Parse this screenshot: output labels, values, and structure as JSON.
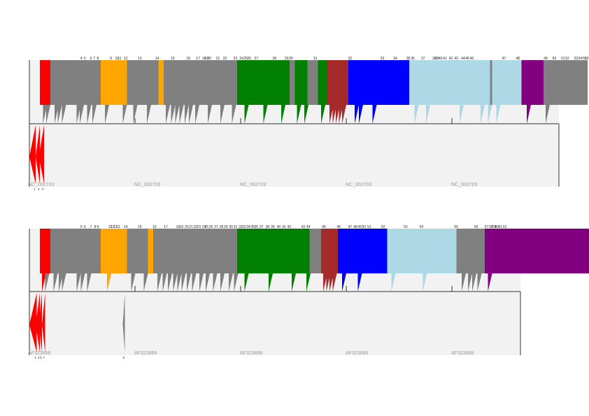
{
  "colors": {
    "red": "#ff0000",
    "gray": "#808080",
    "orange": "#ffa500",
    "green": "#008000",
    "brown": "#a52a2a",
    "blue": "#0000ff",
    "lightblue": "#add8e6",
    "purple": "#800080",
    "background": "#f2f2f2",
    "frame": "#333333"
  },
  "tracks": [
    {
      "id": "NC_002703",
      "repeat_labels": [
        "NC_002703",
        "NC_002703",
        "NC_002703",
        "NC_002703",
        "NC_002703"
      ],
      "blocks": [
        {
          "c": "red",
          "s": 0.1,
          "e": 0.2
        },
        {
          "c": "gray",
          "s": 0.2,
          "e": 0.68
        },
        {
          "c": "orange",
          "s": 0.68,
          "e": 0.93
        },
        {
          "c": "gray",
          "s": 0.93,
          "e": 1.23
        },
        {
          "c": "orange",
          "s": 1.23,
          "e": 1.28
        },
        {
          "c": "gray",
          "s": 1.28,
          "e": 1.98
        },
        {
          "c": "green",
          "s": 1.98,
          "e": 2.48
        },
        {
          "c": "gray",
          "s": 2.48,
          "e": 2.53
        },
        {
          "c": "green",
          "s": 2.53,
          "e": 2.65
        },
        {
          "c": "gray",
          "s": 2.65,
          "e": 2.75
        },
        {
          "c": "green",
          "s": 2.75,
          "e": 2.84
        },
        {
          "c": "brown",
          "s": 2.84,
          "e": 3.04
        },
        {
          "c": "blue",
          "s": 3.04,
          "e": 3.62
        },
        {
          "c": "lightblue",
          "s": 3.62,
          "e": 4.39
        },
        {
          "c": "gray",
          "s": 4.39,
          "e": 4.41
        },
        {
          "c": "lightblue",
          "s": 4.41,
          "e": 4.69
        },
        {
          "c": "purple",
          "s": 4.69,
          "e": 4.9
        },
        {
          "c": "gray",
          "s": 4.9,
          "e": 5.32
        }
      ],
      "arrows": [
        {
          "c": "gray",
          "x": 0.13
        },
        {
          "c": "gray",
          "x": 0.16
        },
        {
          "c": "gray",
          "x": 0.24
        },
        {
          "c": "gray",
          "x": 0.27
        },
        {
          "c": "gray",
          "x": 0.31
        },
        {
          "c": "gray",
          "x": 0.45
        },
        {
          "c": "gray",
          "x": 0.48
        },
        {
          "c": "gray",
          "x": 0.55
        },
        {
          "c": "gray",
          "x": 0.6
        },
        {
          "c": "gray",
          "x": 0.72
        },
        {
          "c": "gray",
          "x": 0.89
        },
        {
          "c": "gray",
          "x": 0.99
        },
        {
          "c": "gray",
          "x": 1.12
        },
        {
          "c": "gray",
          "x": 1.3
        },
        {
          "c": "gray",
          "x": 1.35
        },
        {
          "c": "gray",
          "x": 1.39
        },
        {
          "c": "gray",
          "x": 1.43
        },
        {
          "c": "gray",
          "x": 1.48
        },
        {
          "c": "gray",
          "x": 1.52
        },
        {
          "c": "gray",
          "x": 1.58
        },
        {
          "c": "gray",
          "x": 1.7
        },
        {
          "c": "gray",
          "x": 1.82
        },
        {
          "c": "gray",
          "x": 1.93
        },
        {
          "c": "green",
          "x": 2.05
        },
        {
          "c": "green",
          "x": 2.23
        },
        {
          "c": "green",
          "x": 2.4
        },
        {
          "c": "green",
          "x": 2.55
        },
        {
          "c": "green",
          "x": 2.62
        },
        {
          "c": "green",
          "x": 2.78
        },
        {
          "c": "brown",
          "x": 2.86
        },
        {
          "c": "brown",
          "x": 2.89
        },
        {
          "c": "brown",
          "x": 2.92
        },
        {
          "c": "brown",
          "x": 2.95
        },
        {
          "c": "brown",
          "x": 2.98
        },
        {
          "c": "blue",
          "x": 3.1
        },
        {
          "c": "blue",
          "x": 3.14
        },
        {
          "c": "blue",
          "x": 3.27
        },
        {
          "c": "lightblue",
          "x": 3.67
        },
        {
          "c": "lightblue",
          "x": 3.78
        },
        {
          "c": "lightblue",
          "x": 4.1
        },
        {
          "c": "lightblue",
          "x": 4.3
        },
        {
          "c": "lightblue",
          "x": 4.37
        },
        {
          "c": "lightblue",
          "x": 4.45
        },
        {
          "c": "purple",
          "x": 4.74
        },
        {
          "c": "gray",
          "x": 4.92
        }
      ],
      "labels": [
        "4",
        "5",
        "6",
        "7",
        "8",
        "9",
        "10",
        "11",
        "12",
        "13",
        "14",
        "15",
        "16",
        "17",
        "18",
        "19",
        "20",
        "21",
        "22",
        "23",
        "24",
        "25",
        "26",
        "27",
        "28",
        "29",
        "30",
        "31",
        "32",
        "33",
        "34",
        "35",
        "36",
        "37",
        "38",
        "39",
        "40",
        "41",
        "42",
        "43",
        "44",
        "45",
        "46",
        "47",
        "48",
        "49",
        "50",
        "51",
        "52",
        "53",
        "54",
        "55",
        "56"
      ],
      "label_pos": [
        0.12,
        0.16,
        0.23,
        0.27,
        0.31,
        0.46,
        0.52,
        0.55,
        0.62,
        0.78,
        0.98,
        1.16,
        1.34,
        1.45,
        1.52,
        1.55,
        1.58,
        1.68,
        1.76,
        1.88,
        1.95,
        2.0,
        2.04,
        2.12,
        2.33,
        2.47,
        2.52,
        2.8,
        3.2,
        3.57,
        3.72,
        3.87,
        3.92,
        4.04,
        4.17,
        4.2,
        4.24,
        4.29,
        4.36,
        4.42,
        4.5,
        4.55,
        4.6,
        4.97,
        5.13,
        5.45,
        5.55,
        5.65,
        5.7,
        5.8,
        5.85,
        5.9,
        6.03
      ],
      "bottom_arrows": [
        {
          "c": "red",
          "s": 0.0,
          "e": 0.06
        },
        {
          "c": "red",
          "s": 0.06,
          "e": 0.1
        },
        {
          "c": "red",
          "s": 0.09,
          "e": 0.14
        }
      ],
      "bottom_labels": [
        "1",
        "2",
        "3"
      ]
    },
    {
      "id": "AF323668",
      "repeat_labels": [
        "AF323668",
        "AF323668",
        "AF323668",
        "AF323668",
        "AF323668"
      ],
      "blocks": [
        {
          "c": "red",
          "s": 0.1,
          "e": 0.2
        },
        {
          "c": "gray",
          "s": 0.2,
          "e": 0.68
        },
        {
          "c": "orange",
          "s": 0.68,
          "e": 0.93
        },
        {
          "c": "gray",
          "s": 0.93,
          "e": 1.13
        },
        {
          "c": "orange",
          "s": 1.13,
          "e": 1.18
        },
        {
          "c": "gray",
          "s": 1.18,
          "e": 1.98
        },
        {
          "c": "green",
          "s": 1.98,
          "e": 2.67
        },
        {
          "c": "gray",
          "s": 2.67,
          "e": 2.78
        },
        {
          "c": "brown",
          "s": 2.78,
          "e": 2.94
        },
        {
          "c": "blue",
          "s": 2.94,
          "e": 3.41
        },
        {
          "c": "lightblue",
          "s": 3.41,
          "e": 4.07
        },
        {
          "c": "gray",
          "s": 4.07,
          "e": 4.34
        },
        {
          "c": "purple",
          "s": 4.34,
          "e": 5.48
        }
      ],
      "arrows": [
        {
          "c": "red",
          "x": 0.12
        },
        {
          "c": "gray",
          "x": 0.15
        },
        {
          "c": "gray",
          "x": 0.23
        },
        {
          "c": "gray",
          "x": 0.28
        },
        {
          "c": "gray",
          "x": 0.31
        },
        {
          "c": "gray",
          "x": 0.45
        },
        {
          "c": "gray",
          "x": 0.49
        },
        {
          "c": "gray",
          "x": 0.55
        },
        {
          "c": "orange",
          "x": 0.74
        },
        {
          "c": "gray",
          "x": 0.97
        },
        {
          "c": "gray",
          "x": 1.09
        },
        {
          "c": "gray",
          "x": 1.22
        },
        {
          "c": "gray",
          "x": 1.27
        },
        {
          "c": "gray",
          "x": 1.32
        },
        {
          "c": "gray",
          "x": 1.37
        },
        {
          "c": "gray",
          "x": 1.41
        },
        {
          "c": "gray",
          "x": 1.45
        },
        {
          "c": "gray",
          "x": 1.5
        },
        {
          "c": "gray",
          "x": 1.55
        },
        {
          "c": "gray",
          "x": 1.62
        },
        {
          "c": "gray",
          "x": 1.68
        },
        {
          "c": "gray",
          "x": 1.75
        },
        {
          "c": "gray",
          "x": 1.82
        },
        {
          "c": "gray",
          "x": 1.9
        },
        {
          "c": "gray",
          "x": 1.95
        },
        {
          "c": "green",
          "x": 2.05
        },
        {
          "c": "green",
          "x": 2.28
        },
        {
          "c": "green",
          "x": 2.5
        },
        {
          "c": "green",
          "x": 2.64
        },
        {
          "c": "brown",
          "x": 2.8
        },
        {
          "c": "brown",
          "x": 2.83
        },
        {
          "c": "brown",
          "x": 2.86
        },
        {
          "c": "brown",
          "x": 2.89
        },
        {
          "c": "blue",
          "x": 2.98
        },
        {
          "c": "blue",
          "x": 3.13
        },
        {
          "c": "lightblue",
          "x": 3.45
        },
        {
          "c": "lightblue",
          "x": 3.75
        },
        {
          "c": "gray",
          "x": 4.12
        },
        {
          "c": "gray",
          "x": 4.18
        },
        {
          "c": "gray",
          "x": 4.22
        },
        {
          "c": "gray",
          "x": 4.27
        },
        {
          "c": "purple",
          "x": 4.37
        }
      ],
      "labels": [
        "5",
        "6",
        "7",
        "8",
        "9",
        "10",
        "11",
        "12",
        "13",
        "14",
        "15",
        "16",
        "17",
        "18",
        "19",
        "20",
        "21",
        "22",
        "23",
        "24",
        "25",
        "26",
        "27",
        "28",
        "29",
        "30",
        "31",
        "32",
        "33",
        "34",
        "35",
        "36",
        "37",
        "38",
        "39",
        "40",
        "41",
        "42",
        "43",
        "44",
        "45",
        "46",
        "47",
        "48",
        "49",
        "50",
        "51",
        "52",
        "53",
        "54",
        "55",
        "56",
        "57",
        "58",
        "59",
        "60",
        "61",
        "62"
      ],
      "label_pos": [
        0.12,
        0.16,
        0.23,
        0.28,
        0.31,
        0.44,
        0.47,
        0.5,
        0.53,
        0.62,
        0.78,
        0.95,
        1.08,
        1.22,
        1.26,
        1.32,
        1.37,
        1.42,
        1.46,
        1.52,
        1.55,
        1.6,
        1.66,
        1.72,
        1.77,
        1.83,
        1.88,
        1.94,
        1.98,
        2.03,
        2.08,
        2.12,
        2.18,
        2.25,
        2.31,
        2.38,
        2.44,
        2.5,
        2.66,
        2.72,
        2.9,
        3.07,
        3.2,
        3.26,
        3.31,
        3.36,
        3.42,
        3.58,
        3.84,
        4.02,
        4.42,
        4.65,
        4.77,
        4.82,
        4.86,
        4.89,
        4.93,
        4.98
      ],
      "bottom_arrows": [
        {
          "c": "red",
          "s": 0.0,
          "e": 0.07
        },
        {
          "c": "red",
          "s": 0.06,
          "e": 0.1
        },
        {
          "c": "red",
          "s": 0.09,
          "e": 0.12
        },
        {
          "c": "red",
          "s": 0.12,
          "e": 0.15
        },
        {
          "c": "gray",
          "s": 0.89,
          "e": 0.91
        }
      ],
      "bottom_labels": [
        "1",
        "2",
        "3",
        "7",
        "8"
      ]
    }
  ]
}
